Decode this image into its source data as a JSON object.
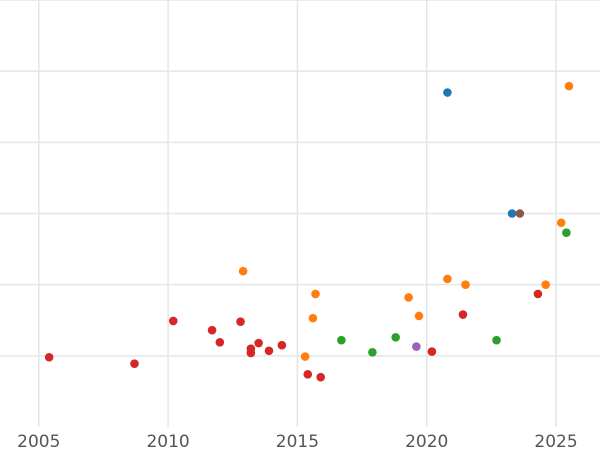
{
  "chart_data": {
    "type": "scatter",
    "title": "",
    "xlabel": "",
    "ylabel": "",
    "xlim": [
      2003.5,
      2026.7
    ],
    "ylim": [
      0,
      6
    ],
    "grid": true,
    "x_ticks": [
      2005,
      2010,
      2015,
      2020,
      2025
    ],
    "x_tick_labels": [
      "2005",
      "2010",
      "2015",
      "2020",
      "2025"
    ],
    "y_ticks": [
      1,
      2,
      3,
      4,
      5,
      6
    ],
    "y_tick_labels": [],
    "colors": {
      "blue": "#1f77b4",
      "orange": "#ff7f0e",
      "green": "#2ca02c",
      "red": "#d62728",
      "purple": "#9467bd",
      "brown": "#8c564b"
    },
    "series": [
      {
        "color": "#d62728",
        "points": [
          {
            "x": 2005.4,
            "y": 0.98
          },
          {
            "x": 2008.7,
            "y": 0.89
          },
          {
            "x": 2010.2,
            "y": 1.49
          },
          {
            "x": 2011.7,
            "y": 1.36
          },
          {
            "x": 2012.0,
            "y": 1.19
          },
          {
            "x": 2012.8,
            "y": 1.48
          },
          {
            "x": 2013.2,
            "y": 1.04
          },
          {
            "x": 2013.2,
            "y": 1.1
          },
          {
            "x": 2013.5,
            "y": 1.18
          },
          {
            "x": 2013.9,
            "y": 1.07
          },
          {
            "x": 2014.4,
            "y": 1.15
          },
          {
            "x": 2015.4,
            "y": 0.74
          },
          {
            "x": 2015.9,
            "y": 0.7
          },
          {
            "x": 2020.2,
            "y": 1.06
          },
          {
            "x": 2021.4,
            "y": 1.58
          },
          {
            "x": 2024.3,
            "y": 1.87
          }
        ]
      },
      {
        "color": "#ff7f0e",
        "points": [
          {
            "x": 2012.9,
            "y": 2.19
          },
          {
            "x": 2015.3,
            "y": 0.99
          },
          {
            "x": 2015.6,
            "y": 1.53
          },
          {
            "x": 2015.7,
            "y": 1.87
          },
          {
            "x": 2019.3,
            "y": 1.82
          },
          {
            "x": 2019.7,
            "y": 1.56
          },
          {
            "x": 2020.8,
            "y": 2.08
          },
          {
            "x": 2021.5,
            "y": 2.0
          },
          {
            "x": 2024.6,
            "y": 2.0
          },
          {
            "x": 2025.2,
            "y": 2.87
          },
          {
            "x": 2025.5,
            "y": 4.79
          }
        ]
      },
      {
        "color": "#2ca02c",
        "points": [
          {
            "x": 2016.7,
            "y": 1.22
          },
          {
            "x": 2017.9,
            "y": 1.05
          },
          {
            "x": 2018.8,
            "y": 1.26
          },
          {
            "x": 2022.7,
            "y": 1.22
          },
          {
            "x": 2025.4,
            "y": 2.73
          }
        ]
      },
      {
        "color": "#1f77b4",
        "points": [
          {
            "x": 2020.8,
            "y": 4.7
          },
          {
            "x": 2023.3,
            "y": 3.0
          }
        ]
      },
      {
        "color": "#8c564b",
        "points": [
          {
            "x": 2023.6,
            "y": 3.0
          }
        ]
      },
      {
        "color": "#9467bd",
        "points": [
          {
            "x": 2019.6,
            "y": 1.13
          }
        ]
      }
    ]
  }
}
